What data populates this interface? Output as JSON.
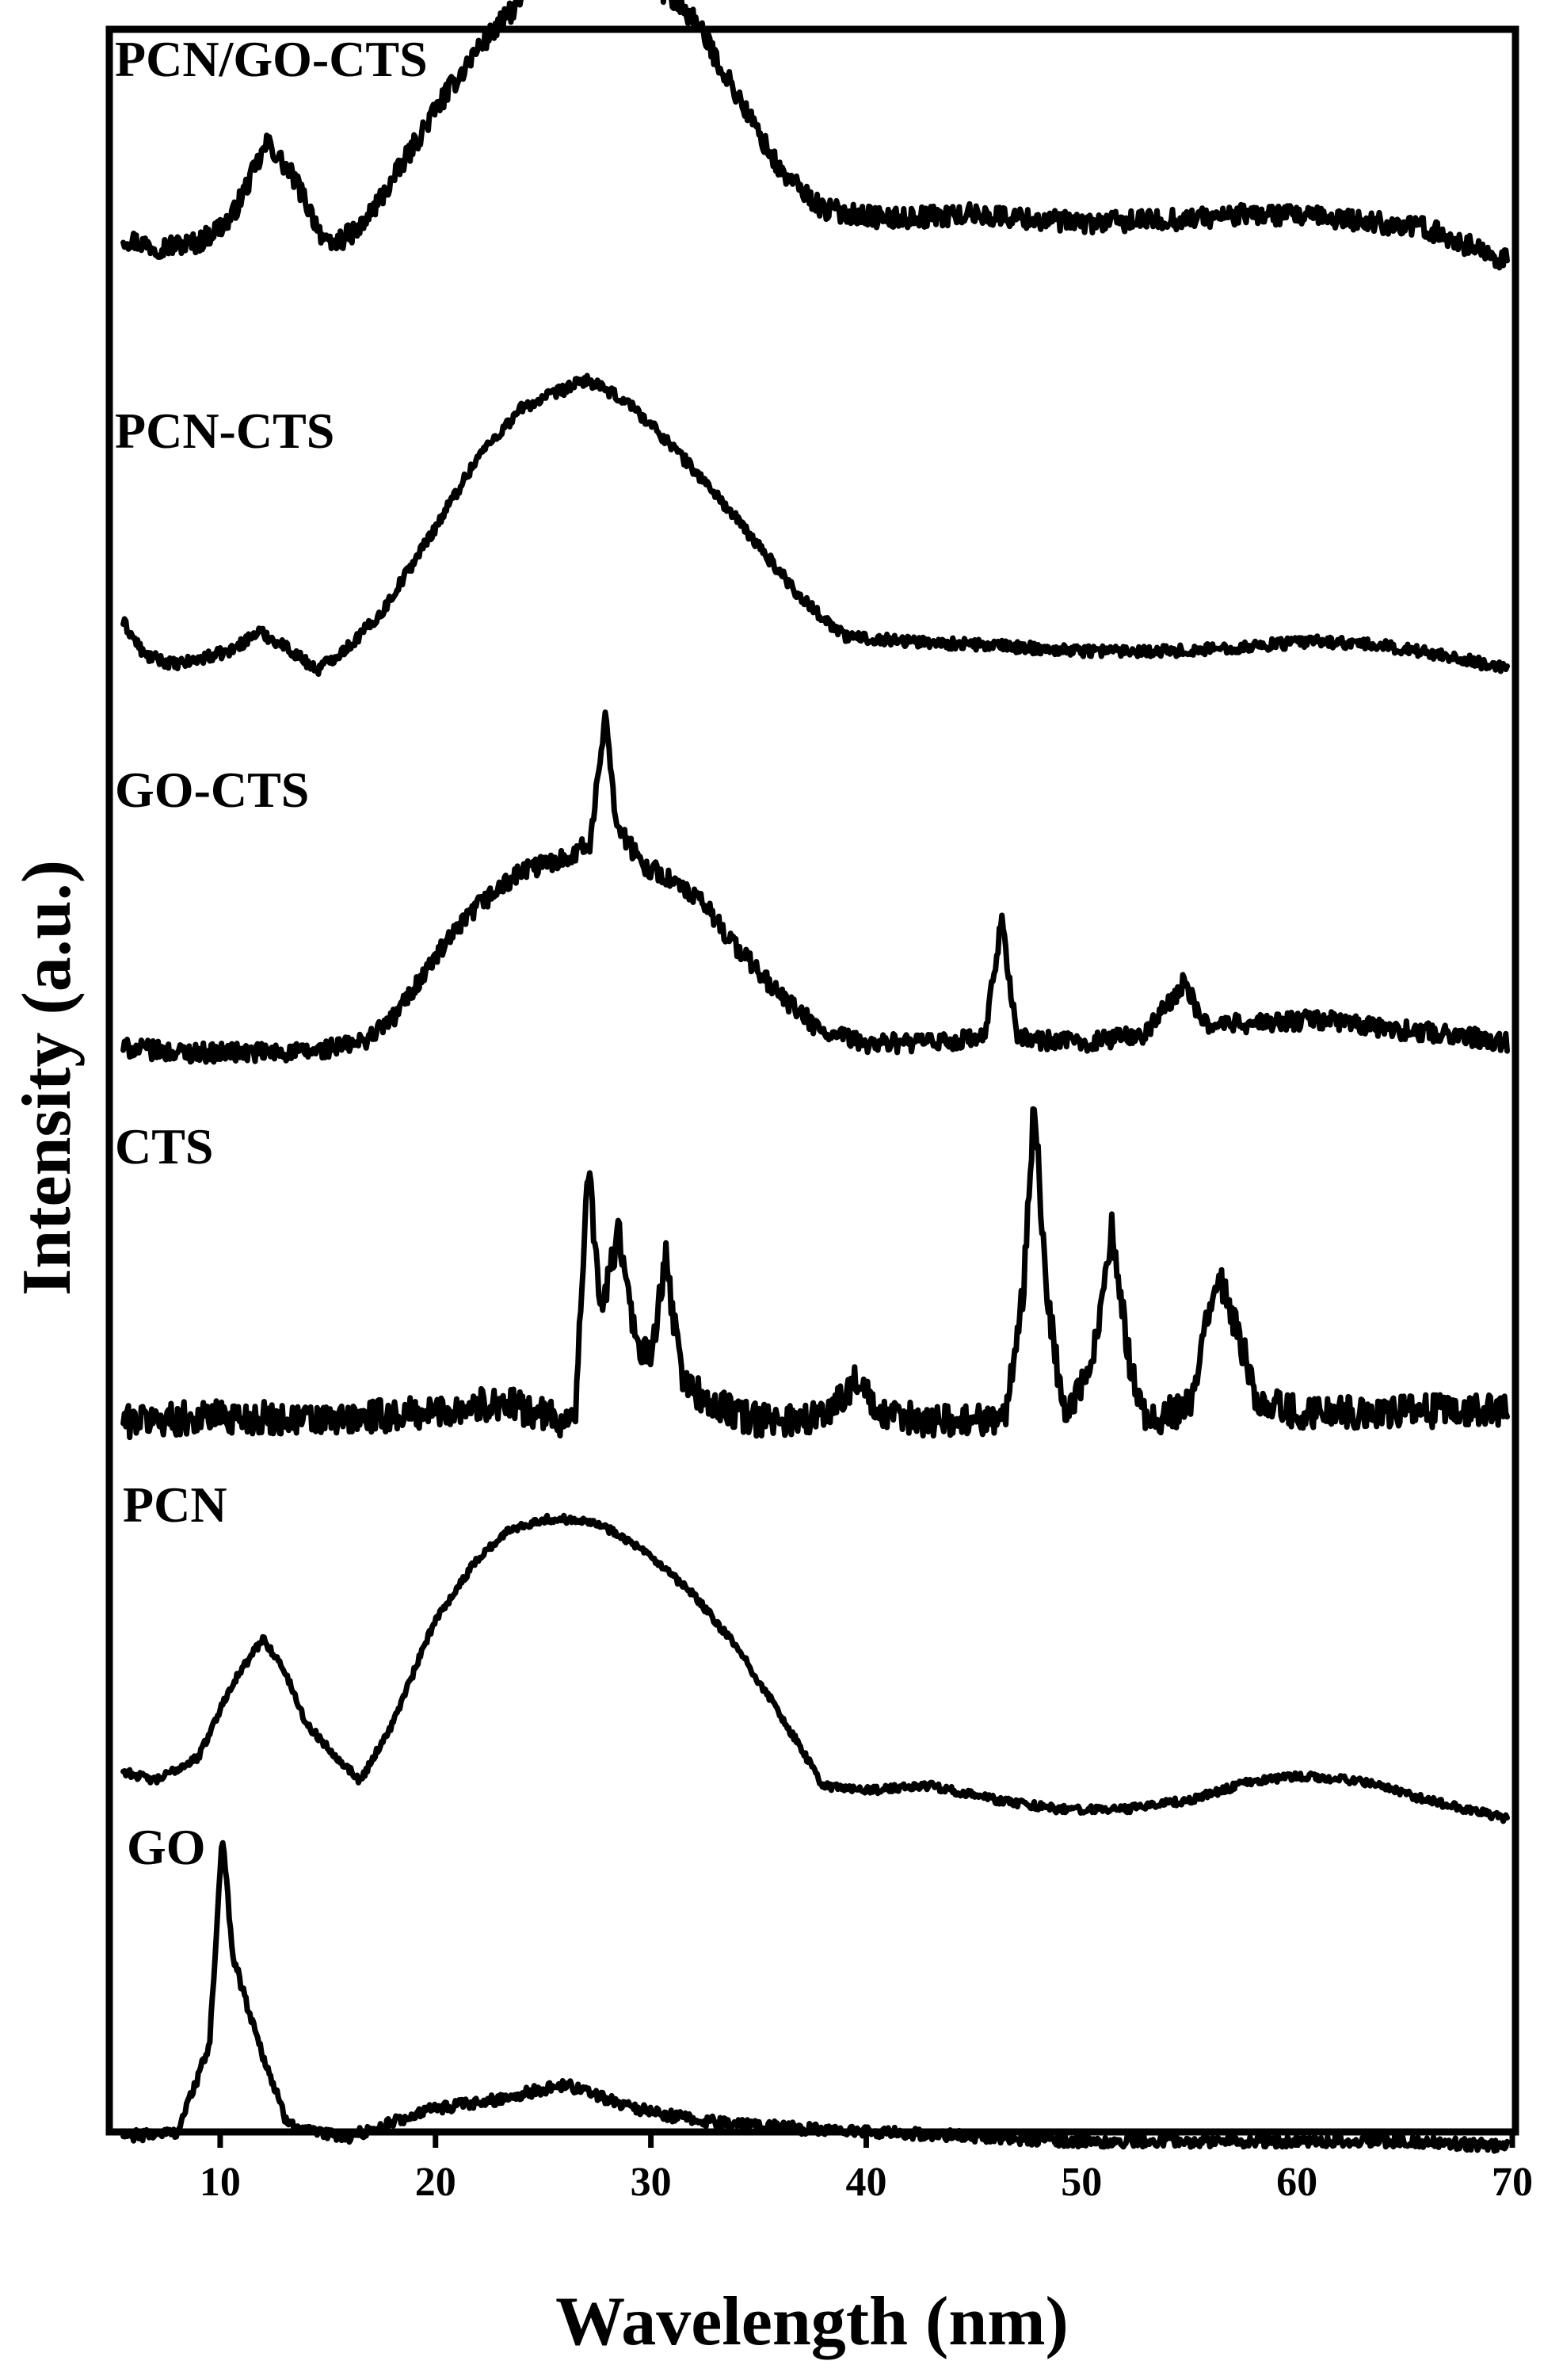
{
  "chart_data": {
    "type": "line",
    "xlabel": "Wavelength (nm)",
    "ylabel": "Intensity (a.u.)",
    "xlim": [
      5,
      70
    ],
    "x_ticks": [
      10,
      20,
      30,
      40,
      50,
      60,
      70
    ],
    "y_ticks_shown": false,
    "grid": false,
    "legend": "none (traces labeled inline, top-left of each trace)",
    "stacked_offset": true,
    "series": [
      {
        "name": "PCN/GO-CTS",
        "points": [
          [
            5.5,
            0.1
          ],
          [
            7,
            0.08
          ],
          [
            9,
            0.09
          ],
          [
            10.5,
            0.14
          ],
          [
            12.2,
            0.3
          ],
          [
            13.5,
            0.22
          ],
          [
            15,
            0.08
          ],
          [
            16.5,
            0.12
          ],
          [
            18,
            0.22
          ],
          [
            20,
            0.37
          ],
          [
            22,
            0.5
          ],
          [
            24,
            0.6
          ],
          [
            25.5,
            0.67
          ],
          [
            27.2,
            0.78
          ],
          [
            28.5,
            0.72
          ],
          [
            30,
            0.64
          ],
          [
            32,
            0.56
          ],
          [
            34,
            0.4
          ],
          [
            36,
            0.24
          ],
          [
            38,
            0.16
          ],
          [
            41,
            0.14
          ],
          [
            45,
            0.15
          ],
          [
            50,
            0.13
          ],
          [
            55,
            0.14
          ],
          [
            58,
            0.15
          ],
          [
            62,
            0.14
          ],
          [
            66,
            0.12
          ],
          [
            69.8,
            0.05
          ]
        ]
      },
      {
        "name": "PCN-CTS",
        "points": [
          [
            5.5,
            0.1
          ],
          [
            6.5,
            0.03
          ],
          [
            8,
            0.01
          ],
          [
            10.5,
            0.04
          ],
          [
            11.8,
            0.08
          ],
          [
            13,
            0.05
          ],
          [
            14.5,
            0.0
          ],
          [
            16,
            0.05
          ],
          [
            17.5,
            0.12
          ],
          [
            20,
            0.3
          ],
          [
            22,
            0.45
          ],
          [
            24,
            0.55
          ],
          [
            25.5,
            0.58
          ],
          [
            27,
            0.61
          ],
          [
            29,
            0.56
          ],
          [
            31,
            0.47
          ],
          [
            33,
            0.37
          ],
          [
            35,
            0.26
          ],
          [
            37,
            0.15
          ],
          [
            39,
            0.07
          ],
          [
            42,
            0.06
          ],
          [
            46,
            0.05
          ],
          [
            50,
            0.04
          ],
          [
            55,
            0.04
          ],
          [
            58,
            0.05
          ],
          [
            61,
            0.06
          ],
          [
            64,
            0.05
          ],
          [
            67,
            0.03
          ],
          [
            69.8,
            0.0
          ]
        ]
      },
      {
        "name": "GO-CTS",
        "points": [
          [
            5.5,
            0.01
          ],
          [
            8,
            0.0
          ],
          [
            11,
            0.0
          ],
          [
            14,
            0.0
          ],
          [
            16.5,
            0.02
          ],
          [
            18,
            0.07
          ],
          [
            20,
            0.2
          ],
          [
            22,
            0.31
          ],
          [
            24,
            0.38
          ],
          [
            26,
            0.41
          ],
          [
            27.2,
            0.44
          ],
          [
            27.9,
            0.72
          ],
          [
            28.4,
            0.48
          ],
          [
            29.5,
            0.4
          ],
          [
            31,
            0.36
          ],
          [
            32.5,
            0.31
          ],
          [
            34,
            0.22
          ],
          [
            36,
            0.12
          ],
          [
            38,
            0.04
          ],
          [
            40,
            0.02
          ],
          [
            43,
            0.02
          ],
          [
            45.5,
            0.03
          ],
          [
            46.3,
            0.28
          ],
          [
            47,
            0.03
          ],
          [
            50,
            0.02
          ],
          [
            53,
            0.04
          ],
          [
            54.8,
            0.15
          ],
          [
            55.6,
            0.06
          ],
          [
            58,
            0.06
          ],
          [
            61,
            0.07
          ],
          [
            64,
            0.05
          ],
          [
            67,
            0.04
          ],
          [
            69.8,
            0.02
          ]
        ]
      },
      {
        "name": "CTS",
        "points": [
          [
            5.5,
            0.02
          ],
          [
            10,
            0.03
          ],
          [
            15,
            0.02
          ],
          [
            20,
            0.04
          ],
          [
            23,
            0.06
          ],
          [
            26,
            0.02
          ],
          [
            26.5,
            0.05
          ],
          [
            27.1,
            0.55
          ],
          [
            27.7,
            0.25
          ],
          [
            28.5,
            0.42
          ],
          [
            29.3,
            0.18
          ],
          [
            30,
            0.15
          ],
          [
            30.7,
            0.36
          ],
          [
            31.4,
            0.12
          ],
          [
            32.5,
            0.06
          ],
          [
            35,
            0.02
          ],
          [
            38,
            0.03
          ],
          [
            39.6,
            0.11
          ],
          [
            40.5,
            0.03
          ],
          [
            44,
            0.02
          ],
          [
            46.5,
            0.03
          ],
          [
            47.3,
            0.3
          ],
          [
            47.8,
            0.69
          ],
          [
            48.4,
            0.28
          ],
          [
            49.2,
            0.03
          ],
          [
            50.5,
            0.14
          ],
          [
            51.4,
            0.43
          ],
          [
            52.2,
            0.15
          ],
          [
            53,
            0.02
          ],
          [
            55,
            0.05
          ],
          [
            56.3,
            0.33
          ],
          [
            57.3,
            0.2
          ],
          [
            58.2,
            0.06
          ],
          [
            60,
            0.04
          ],
          [
            64,
            0.04
          ],
          [
            69.8,
            0.04
          ]
        ]
      },
      {
        "name": "PCN",
        "points": [
          [
            5.5,
            0.1
          ],
          [
            7,
            0.08
          ],
          [
            9,
            0.13
          ],
          [
            10.5,
            0.28
          ],
          [
            12,
            0.38
          ],
          [
            13,
            0.31
          ],
          [
            14,
            0.2
          ],
          [
            15,
            0.15
          ],
          [
            16.5,
            0.08
          ],
          [
            18,
            0.2
          ],
          [
            20,
            0.42
          ],
          [
            22,
            0.55
          ],
          [
            23.5,
            0.61
          ],
          [
            25,
            0.63
          ],
          [
            27,
            0.63
          ],
          [
            28.5,
            0.6
          ],
          [
            30,
            0.55
          ],
          [
            32,
            0.47
          ],
          [
            34,
            0.36
          ],
          [
            36,
            0.22
          ],
          [
            38,
            0.07
          ],
          [
            40,
            0.06
          ],
          [
            43,
            0.07
          ],
          [
            46,
            0.04
          ],
          [
            49,
            0.02
          ],
          [
            52,
            0.02
          ],
          [
            55,
            0.04
          ],
          [
            58,
            0.08
          ],
          [
            60,
            0.09
          ],
          [
            63,
            0.08
          ],
          [
            66,
            0.04
          ],
          [
            69.8,
            0.0
          ]
        ]
      },
      {
        "name": "GO",
        "points": [
          [
            5.5,
            0.04
          ],
          [
            8,
            0.05
          ],
          [
            9.5,
            0.23
          ],
          [
            10.1,
            0.67
          ],
          [
            10.6,
            0.42
          ],
          [
            11.3,
            0.31
          ],
          [
            12,
            0.21
          ],
          [
            13,
            0.08
          ],
          [
            14,
            0.05
          ],
          [
            16,
            0.04
          ],
          [
            18,
            0.07
          ],
          [
            20,
            0.1
          ],
          [
            22,
            0.11
          ],
          [
            24,
            0.13
          ],
          [
            26,
            0.15
          ],
          [
            28,
            0.12
          ],
          [
            30,
            0.09
          ],
          [
            33,
            0.07
          ],
          [
            36,
            0.06
          ],
          [
            40,
            0.05
          ],
          [
            45,
            0.04
          ],
          [
            50,
            0.03
          ],
          [
            55,
            0.03
          ],
          [
            60,
            0.03
          ],
          [
            65,
            0.03
          ],
          [
            69.8,
            0.02
          ]
        ]
      }
    ]
  }
}
